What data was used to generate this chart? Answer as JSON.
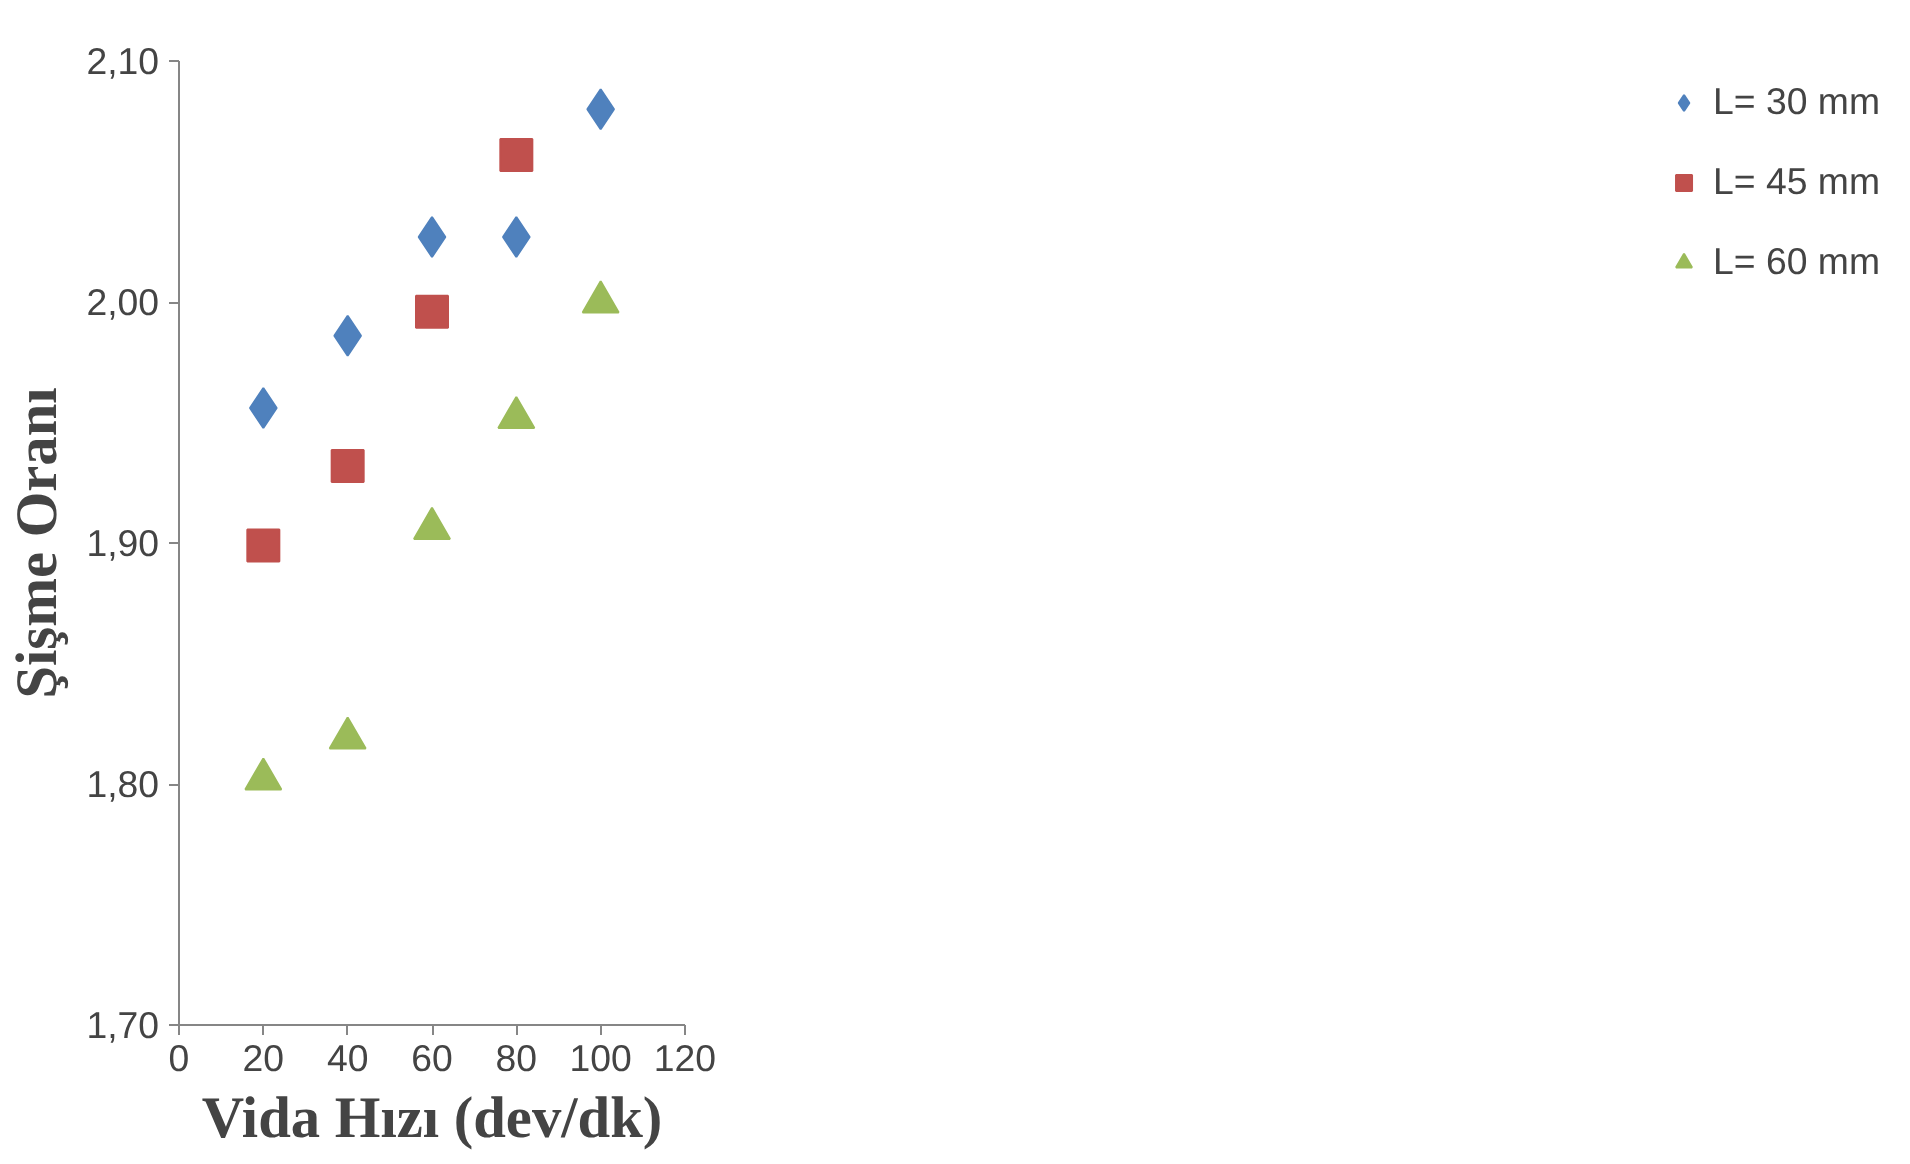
{
  "chart_data": {
    "type": "scatter",
    "xlabel": "Vida Hızı (dev/dk)",
    "ylabel": "Şişme Oranı",
    "xlim": [
      0,
      120
    ],
    "xticks": [
      0,
      20,
      40,
      60,
      80,
      100,
      120
    ],
    "ylim": [
      1.7,
      2.1
    ],
    "yticks": [
      {
        "value": 1.7,
        "label": "1,70"
      },
      {
        "value": 1.8,
        "label": "1,80"
      },
      {
        "value": 1.9,
        "label": "1,90"
      },
      {
        "value": 2.0,
        "label": "2,00"
      },
      {
        "value": 2.1,
        "label": "2,10"
      }
    ],
    "grid": false,
    "legend": "right",
    "series": [
      {
        "name": "L= 30 mm",
        "color": "#4f81bd",
        "marker": "diamond",
        "x": [
          20,
          40,
          60,
          80,
          100
        ],
        "values": [
          1.956,
          1.986,
          2.027,
          2.027,
          2.08
        ]
      },
      {
        "name": "L= 45 mm",
        "color": "#c0504d",
        "marker": "square",
        "x": [
          20,
          40,
          60,
          80
        ],
        "values": [
          1.899,
          1.932,
          1.996,
          2.061
        ]
      },
      {
        "name": "L= 60 mm",
        "color": "#9bbb59",
        "marker": "triangle",
        "x": [
          20,
          40,
          60,
          80,
          100
        ],
        "values": [
          1.802,
          1.819,
          1.906,
          1.952,
          2.0
        ]
      }
    ]
  }
}
